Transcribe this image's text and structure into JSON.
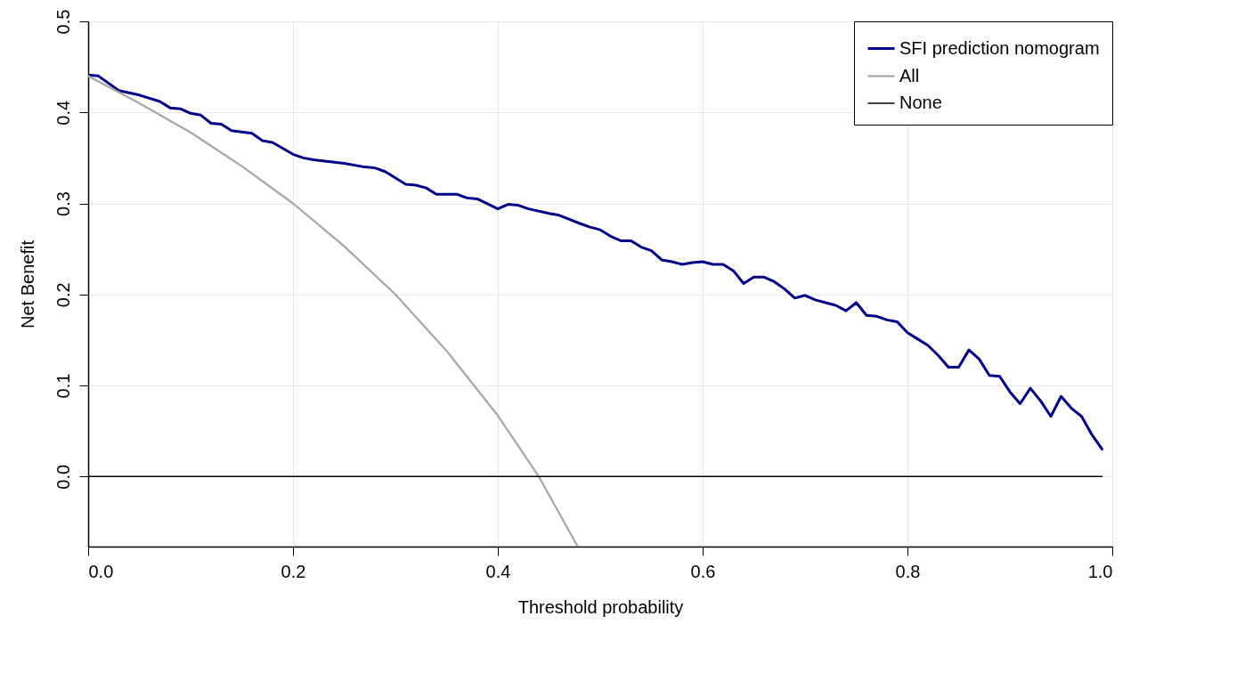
{
  "chart_data": {
    "type": "line",
    "xlabel": "Threshold probability",
    "ylabel": "Net Benefit",
    "xlim": [
      0,
      1
    ],
    "ylim": [
      -0.077,
      0.5
    ],
    "xticks": [
      {
        "value": 0,
        "label": "0.0"
      },
      {
        "value": 0.2,
        "label": "0.2"
      },
      {
        "value": 0.4,
        "label": "0.4"
      },
      {
        "value": 0.6,
        "label": "0.6"
      },
      {
        "value": 0.8,
        "label": "0.8"
      },
      {
        "value": 1,
        "label": "1.0"
      }
    ],
    "yticks": [
      {
        "value": 0,
        "label": "0.0"
      },
      {
        "value": 0.1,
        "label": "0.1"
      },
      {
        "value": 0.2,
        "label": "0.2"
      },
      {
        "value": 0.3,
        "label": "0.3"
      },
      {
        "value": 0.4,
        "label": "0.4"
      },
      {
        "value": 0.5,
        "label": "0.5"
      }
    ],
    "grid": true,
    "legend": "top right",
    "marker": "none",
    "line_style": "solid",
    "series": [
      {
        "name": "SFI prediction nomogram",
        "color": "#00008b",
        "x": [
          0,
          0.01,
          0.03,
          0.05,
          0.07,
          0.08,
          0.09,
          0.1,
          0.11,
          0.12,
          0.13,
          0.14,
          0.16,
          0.17,
          0.18,
          0.2,
          0.21,
          0.22,
          0.25,
          0.27,
          0.28,
          0.29,
          0.31,
          0.32,
          0.33,
          0.34,
          0.36,
          0.37,
          0.38,
          0.4,
          0.41,
          0.42,
          0.43,
          0.45,
          0.46,
          0.48,
          0.49,
          0.5,
          0.51,
          0.52,
          0.53,
          0.54,
          0.55,
          0.56,
          0.57,
          0.58,
          0.59,
          0.6,
          0.61,
          0.62,
          0.63,
          0.64,
          0.65,
          0.66,
          0.67,
          0.68,
          0.69,
          0.7,
          0.71,
          0.72,
          0.73,
          0.74,
          0.75,
          0.76,
          0.77,
          0.78,
          0.79,
          0.8,
          0.81,
          0.82,
          0.83,
          0.84,
          0.85,
          0.86,
          0.87,
          0.88,
          0.89,
          0.9,
          0.91,
          0.92,
          0.93,
          0.94,
          0.95,
          0.96,
          0.97,
          0.98,
          0.99
        ],
        "values": [
          0.441,
          0.44,
          0.424,
          0.419,
          0.412,
          0.405,
          0.404,
          0.399,
          0.397,
          0.388,
          0.387,
          0.38,
          0.377,
          0.369,
          0.367,
          0.354,
          0.35,
          0.348,
          0.344,
          0.34,
          0.339,
          0.335,
          0.321,
          0.32,
          0.317,
          0.31,
          0.31,
          0.306,
          0.305,
          0.294,
          0.299,
          0.298,
          0.294,
          0.289,
          0.287,
          0.278,
          0.274,
          0.271,
          0.264,
          0.259,
          0.259,
          0.252,
          0.248,
          0.238,
          0.236,
          0.233,
          0.235,
          0.236,
          0.233,
          0.233,
          0.226,
          0.212,
          0.219,
          0.219,
          0.214,
          0.206,
          0.196,
          0.199,
          0.194,
          0.191,
          0.188,
          0.182,
          0.191,
          0.177,
          0.176,
          0.172,
          0.17,
          0.158,
          0.151,
          0.144,
          0.133,
          0.12,
          0.12,
          0.139,
          0.129,
          0.111,
          0.11,
          0.093,
          0.08,
          0.097,
          0.083,
          0.066,
          0.088,
          0.075,
          0.066,
          0.046,
          0.03
        ]
      },
      {
        "name": "All",
        "color": "#a8a8a8",
        "x": [
          0,
          0.05,
          0.1,
          0.15,
          0.2,
          0.25,
          0.3,
          0.35,
          0.4,
          0.44,
          0.478
        ],
        "values": [
          0.44,
          0.41,
          0.378,
          0.341,
          0.3,
          0.253,
          0.2,
          0.138,
          0.067,
          0,
          -0.077
        ]
      },
      {
        "name": "None",
        "color": "#000000",
        "x": [
          0,
          0.99
        ],
        "values": [
          0,
          0
        ]
      }
    ]
  }
}
